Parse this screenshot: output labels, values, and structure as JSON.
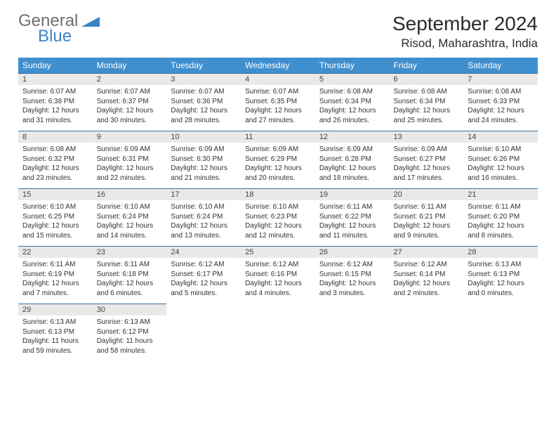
{
  "logo": {
    "text_general": "General",
    "text_blue": "Blue"
  },
  "title": "September 2024",
  "location": "Risod, Maharashtra, India",
  "colors": {
    "header_bg": "#3f8fcf",
    "header_text": "#ffffff",
    "daynum_bg": "#e9e9e9",
    "row_border": "#3670a0",
    "logo_gray": "#6f6f6f",
    "logo_blue": "#3b82c4",
    "body_text": "#333333",
    "page_bg": "#ffffff"
  },
  "typography": {
    "month_title_size": 28,
    "location_size": 17,
    "weekday_size": 12,
    "daynum_size": 11,
    "body_size": 10,
    "font_family": "Arial"
  },
  "weekdays": [
    "Sunday",
    "Monday",
    "Tuesday",
    "Wednesday",
    "Thursday",
    "Friday",
    "Saturday"
  ],
  "weeks": [
    [
      {
        "n": "1",
        "sr": "6:07 AM",
        "ss": "6:38 PM",
        "dl": "12 hours and 31 minutes."
      },
      {
        "n": "2",
        "sr": "6:07 AM",
        "ss": "6:37 PM",
        "dl": "12 hours and 30 minutes."
      },
      {
        "n": "3",
        "sr": "6:07 AM",
        "ss": "6:36 PM",
        "dl": "12 hours and 28 minutes."
      },
      {
        "n": "4",
        "sr": "6:07 AM",
        "ss": "6:35 PM",
        "dl": "12 hours and 27 minutes."
      },
      {
        "n": "5",
        "sr": "6:08 AM",
        "ss": "6:34 PM",
        "dl": "12 hours and 26 minutes."
      },
      {
        "n": "6",
        "sr": "6:08 AM",
        "ss": "6:34 PM",
        "dl": "12 hours and 25 minutes."
      },
      {
        "n": "7",
        "sr": "6:08 AM",
        "ss": "6:33 PM",
        "dl": "12 hours and 24 minutes."
      }
    ],
    [
      {
        "n": "8",
        "sr": "6:08 AM",
        "ss": "6:32 PM",
        "dl": "12 hours and 23 minutes."
      },
      {
        "n": "9",
        "sr": "6:09 AM",
        "ss": "6:31 PM",
        "dl": "12 hours and 22 minutes."
      },
      {
        "n": "10",
        "sr": "6:09 AM",
        "ss": "6:30 PM",
        "dl": "12 hours and 21 minutes."
      },
      {
        "n": "11",
        "sr": "6:09 AM",
        "ss": "6:29 PM",
        "dl": "12 hours and 20 minutes."
      },
      {
        "n": "12",
        "sr": "6:09 AM",
        "ss": "6:28 PM",
        "dl": "12 hours and 18 minutes."
      },
      {
        "n": "13",
        "sr": "6:09 AM",
        "ss": "6:27 PM",
        "dl": "12 hours and 17 minutes."
      },
      {
        "n": "14",
        "sr": "6:10 AM",
        "ss": "6:26 PM",
        "dl": "12 hours and 16 minutes."
      }
    ],
    [
      {
        "n": "15",
        "sr": "6:10 AM",
        "ss": "6:25 PM",
        "dl": "12 hours and 15 minutes."
      },
      {
        "n": "16",
        "sr": "6:10 AM",
        "ss": "6:24 PM",
        "dl": "12 hours and 14 minutes."
      },
      {
        "n": "17",
        "sr": "6:10 AM",
        "ss": "6:24 PM",
        "dl": "12 hours and 13 minutes."
      },
      {
        "n": "18",
        "sr": "6:10 AM",
        "ss": "6:23 PM",
        "dl": "12 hours and 12 minutes."
      },
      {
        "n": "19",
        "sr": "6:11 AM",
        "ss": "6:22 PM",
        "dl": "12 hours and 11 minutes."
      },
      {
        "n": "20",
        "sr": "6:11 AM",
        "ss": "6:21 PM",
        "dl": "12 hours and 9 minutes."
      },
      {
        "n": "21",
        "sr": "6:11 AM",
        "ss": "6:20 PM",
        "dl": "12 hours and 8 minutes."
      }
    ],
    [
      {
        "n": "22",
        "sr": "6:11 AM",
        "ss": "6:19 PM",
        "dl": "12 hours and 7 minutes."
      },
      {
        "n": "23",
        "sr": "6:11 AM",
        "ss": "6:18 PM",
        "dl": "12 hours and 6 minutes."
      },
      {
        "n": "24",
        "sr": "6:12 AM",
        "ss": "6:17 PM",
        "dl": "12 hours and 5 minutes."
      },
      {
        "n": "25",
        "sr": "6:12 AM",
        "ss": "6:16 PM",
        "dl": "12 hours and 4 minutes."
      },
      {
        "n": "26",
        "sr": "6:12 AM",
        "ss": "6:15 PM",
        "dl": "12 hours and 3 minutes."
      },
      {
        "n": "27",
        "sr": "6:12 AM",
        "ss": "6:14 PM",
        "dl": "12 hours and 2 minutes."
      },
      {
        "n": "28",
        "sr": "6:13 AM",
        "ss": "6:13 PM",
        "dl": "12 hours and 0 minutes."
      }
    ],
    [
      {
        "n": "29",
        "sr": "6:13 AM",
        "ss": "6:13 PM",
        "dl": "11 hours and 59 minutes."
      },
      {
        "n": "30",
        "sr": "6:13 AM",
        "ss": "6:12 PM",
        "dl": "11 hours and 58 minutes."
      },
      null,
      null,
      null,
      null,
      null
    ]
  ],
  "labels": {
    "sunrise": "Sunrise:",
    "sunset": "Sunset:",
    "daylight": "Daylight:"
  }
}
